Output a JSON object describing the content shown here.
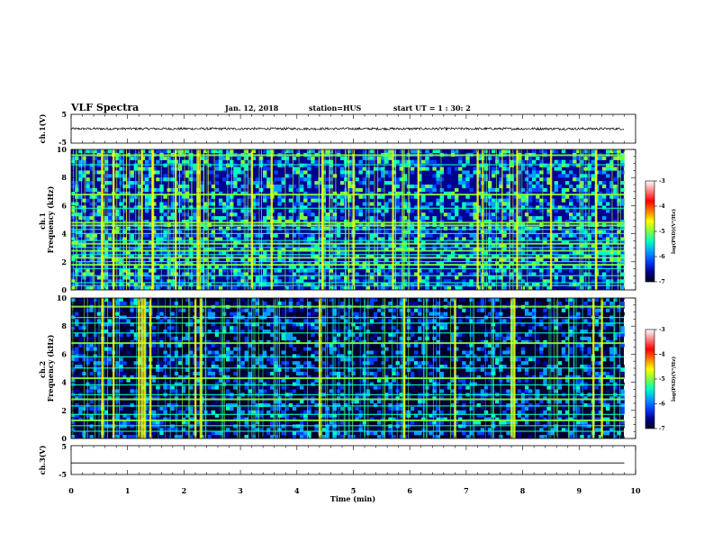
{
  "header": {
    "title": "VLF Spectra",
    "date": "Jan. 12, 2018",
    "station": "station=HUS",
    "start": "start UT =   1 : 30: 2"
  },
  "colors": {
    "colormap": [
      "#000020",
      "#00008f",
      "#0040ff",
      "#00a0ff",
      "#00ffc0",
      "#80ff40",
      "#ffff00",
      "#ff8000",
      "#ff0000",
      "#ff8080",
      "#ffffff"
    ],
    "trace": "#000000"
  },
  "chart_data": [
    {
      "type": "line",
      "name": "ch1-waveform",
      "ylabel": "ch.1(V)",
      "ylim": [
        -5,
        5
      ],
      "yticks": [
        5,
        -5
      ],
      "xlim": [
        0,
        10
      ],
      "trace_extent": [
        0,
        9.8
      ],
      "baseline": 0,
      "noise_amplitude": 0.4
    },
    {
      "type": "heatmap",
      "name": "ch1-spectrogram",
      "ylabel": "ch.1\nFrequency (kHz)",
      "ylim": [
        0,
        10
      ],
      "yticks": [
        0,
        2,
        4,
        6,
        8,
        10
      ],
      "xlim": [
        0,
        10
      ],
      "data_extent": [
        0,
        9.8
      ],
      "background_level": -5.9,
      "horizontal_lines_khz": [
        0.3,
        0.5,
        1.0,
        1.5,
        1.8,
        2.0,
        2.3,
        2.5,
        2.8,
        3.0,
        3.3,
        3.5,
        4.0,
        4.3,
        4.6,
        4.8,
        5.8,
        6.8,
        8.9,
        9.6
      ],
      "strong_lines_khz": [
        1.8,
        2.3,
        2.8,
        3.3,
        4.6,
        4.8,
        6.8,
        9.6
      ],
      "burst_times_min": [
        0.55,
        0.75,
        1.25,
        1.45,
        1.85,
        2.25,
        3.2,
        3.55,
        4.45,
        5.0,
        5.7,
        6.15,
        7.2,
        7.9,
        8.5,
        9.3
      ],
      "colorbar": {
        "label": "log(PSD)(V²/Hz)",
        "range": [
          -7,
          -3
        ],
        "ticks": [
          "-3",
          "-4",
          "-5",
          "-6",
          "-7"
        ]
      }
    },
    {
      "type": "heatmap",
      "name": "ch2-spectrogram",
      "ylabel": "ch.2\nFrequency (kHz)",
      "ylim": [
        0,
        10
      ],
      "yticks": [
        0,
        2,
        4,
        6,
        8,
        10
      ],
      "xlim": [
        0,
        10
      ],
      "data_extent": [
        0,
        9.8
      ],
      "background_level": -6.4,
      "horizontal_lines_khz": [
        0.5,
        0.9,
        1.3,
        1.7,
        2.3,
        2.8,
        3.1,
        3.8,
        4.3,
        5.0,
        5.8,
        6.8,
        7.5,
        8.2,
        8.6,
        9.4
      ],
      "strong_lines_khz": [
        1.3,
        2.8,
        4.3,
        6.8,
        9.4
      ],
      "burst_times_min": [
        0.55,
        0.75,
        1.2,
        1.25,
        1.3,
        1.4,
        2.2,
        2.3,
        4.4,
        5.9,
        6.8,
        7.8,
        7.85,
        9.25,
        9.4
      ],
      "colorbar": {
        "label": "log(PSD)(V²/Hz)",
        "range": [
          -7,
          -3
        ],
        "ticks": [
          "-3",
          "-4",
          "-5",
          "-6",
          "-7"
        ]
      }
    },
    {
      "type": "line",
      "name": "ch3-waveform",
      "ylabel": "ch.3(V)",
      "ylim": [
        -5,
        5
      ],
      "yticks": [
        5,
        -5
      ],
      "xlim": [
        0,
        10
      ],
      "trace_extent": [
        0,
        9.8
      ],
      "baseline": -1,
      "noise_amplitude": 0
    }
  ],
  "xaxis": {
    "label": "Time (min)",
    "ticks": [
      "0",
      "1",
      "2",
      "3",
      "4",
      "5",
      "6",
      "7",
      "8",
      "9",
      "10"
    ]
  }
}
